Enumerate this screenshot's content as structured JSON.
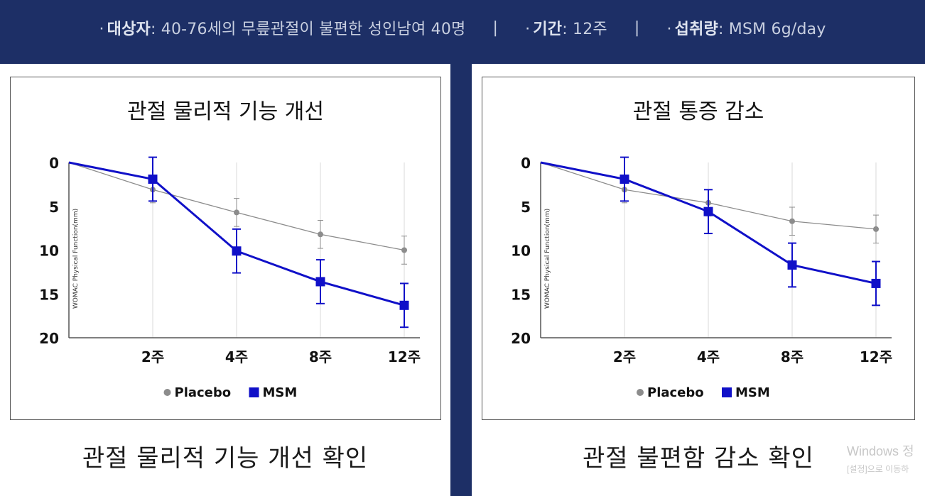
{
  "banner": {
    "subjects_label": "대상자",
    "subjects_value": ": 40-76세의 무릎관절이 불편한 성인남여 40명",
    "period_label": "기간",
    "period_value": ": 12주",
    "dose_label": "섭취량",
    "dose_value": ": MSM 6g/day",
    "separator": "|",
    "bullet": "·"
  },
  "left_caption": "관절 물리적 기능 개선 확인",
  "right_caption": "관절 불편함 감소 확인",
  "watermark": {
    "line1": "Windows 정",
    "line2": "[설정]으로 이동하"
  },
  "colors": {
    "placebo": "#8c8c8c",
    "msm": "#1010c8",
    "banner_bg": "#1d2f66"
  },
  "chart_data": [
    {
      "type": "line",
      "title": "관절 물리적 기능 개선",
      "ylabel": "WOMAC Physical Function(mm)",
      "xlabel": "",
      "categories": [
        "",
        "2주",
        "4주",
        "8주",
        "12주"
      ],
      "ylim": [
        0,
        20
      ],
      "y_inverted": true,
      "y_ticks": [
        0,
        5,
        10,
        15,
        20
      ],
      "grid": "vertical",
      "legend": "bottom",
      "series": [
        {
          "name": "Placebo",
          "marker": "circle",
          "values": [
            0,
            3.1,
            5.7,
            8.2,
            10.0
          ],
          "error": [
            0,
            1.5,
            1.6,
            1.6,
            1.6
          ]
        },
        {
          "name": "MSM",
          "marker": "square",
          "values": [
            0,
            1.9,
            10.1,
            13.6,
            16.3
          ],
          "error": [
            0,
            2.5,
            2.5,
            2.5,
            2.5
          ]
        }
      ]
    },
    {
      "type": "line",
      "title": "관절 통증 감소",
      "ylabel": "WOMAC Physical Function(mm)",
      "xlabel": "",
      "categories": [
        "",
        "2주",
        "4주",
        "8주",
        "12주"
      ],
      "ylim": [
        0,
        20
      ],
      "y_inverted": true,
      "y_ticks": [
        0,
        5,
        10,
        15,
        20
      ],
      "grid": "vertical",
      "legend": "bottom",
      "series": [
        {
          "name": "Placebo",
          "marker": "circle",
          "values": [
            0,
            3.1,
            4.6,
            6.7,
            7.6
          ],
          "error": [
            0,
            1.5,
            1.5,
            1.6,
            1.6
          ]
        },
        {
          "name": "MSM",
          "marker": "square",
          "values": [
            0,
            1.9,
            5.6,
            11.7,
            13.8
          ],
          "error": [
            0,
            2.5,
            2.5,
            2.5,
            2.5
          ]
        }
      ]
    }
  ]
}
